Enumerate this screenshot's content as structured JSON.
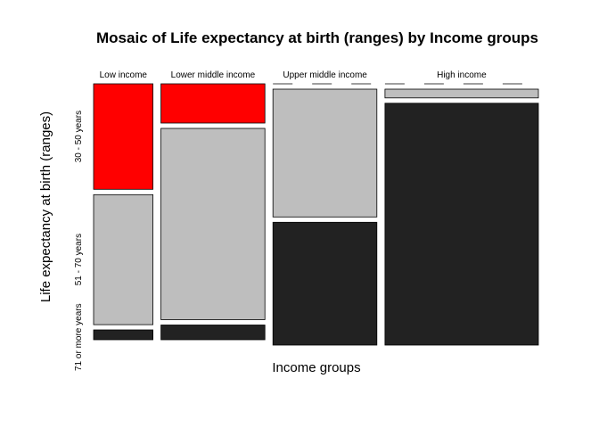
{
  "chart_data": {
    "type": "mosaic",
    "title": "Mosaic of Life expectancy at birth (ranges) by Income groups",
    "xlabel": "Income groups",
    "ylabel": "Life expectancy at birth (ranges)",
    "categories": [
      "Low income",
      "Lower middle income",
      "Upper middle income",
      "High income"
    ],
    "column_shares": [
      0.12,
      0.21,
      0.21,
      0.31
    ],
    "row_labels": [
      "30 - 50 years",
      "51 - 70 years",
      "71 or more years"
    ],
    "colors": {
      "30 - 50 years": "#ff0000",
      "51 - 70 years": "#bebebe",
      "71 or more years": "#222222"
    },
    "series": [
      {
        "name": "30 - 50 years",
        "values": [
          0.43,
          0.16,
          0.0,
          0.0
        ]
      },
      {
        "name": "51 - 70 years",
        "values": [
          0.53,
          0.78,
          0.51,
          0.035
        ]
      },
      {
        "name": "71 or more years",
        "values": [
          0.04,
          0.06,
          0.49,
          0.965
        ]
      }
    ]
  }
}
